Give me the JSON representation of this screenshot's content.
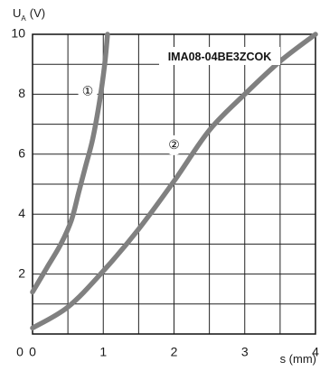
{
  "chart_data": {
    "type": "line",
    "title": "IMA08-04BE3ZCOK",
    "xlabel": "s (mm)",
    "ylabel": {
      "main": "U",
      "sub": "A",
      "unit": "(V)"
    },
    "xlim": [
      0,
      4
    ],
    "ylim": [
      0,
      10
    ],
    "xticks": [
      "0",
      "1",
      "2",
      "3",
      "4"
    ],
    "yticks": [
      "2",
      "4",
      "6",
      "8",
      "10"
    ],
    "grid": true,
    "series": [
      {
        "name": "①",
        "color": "#808080",
        "points": [
          [
            0,
            1.4
          ],
          [
            0.2,
            2.2
          ],
          [
            0.4,
            3.0
          ],
          [
            0.55,
            3.8
          ],
          [
            0.65,
            4.7
          ],
          [
            0.75,
            5.6
          ],
          [
            0.85,
            6.5
          ],
          [
            0.95,
            7.8
          ],
          [
            1.02,
            9.0
          ],
          [
            1.06,
            10.0
          ]
        ]
      },
      {
        "name": "②",
        "color": "#808080",
        "points": [
          [
            0,
            0.2
          ],
          [
            0.5,
            0.9
          ],
          [
            1.0,
            2.1
          ],
          [
            1.5,
            3.5
          ],
          [
            2.0,
            5.1
          ],
          [
            2.5,
            6.8
          ],
          [
            3.0,
            8.0
          ],
          [
            3.5,
            9.1
          ],
          [
            4.0,
            10.0
          ]
        ]
      }
    ],
    "markers": [
      {
        "label": "①",
        "x": 0.78,
        "y": 8.1
      },
      {
        "label": "②",
        "x": 2.0,
        "y": 6.3
      }
    ]
  }
}
